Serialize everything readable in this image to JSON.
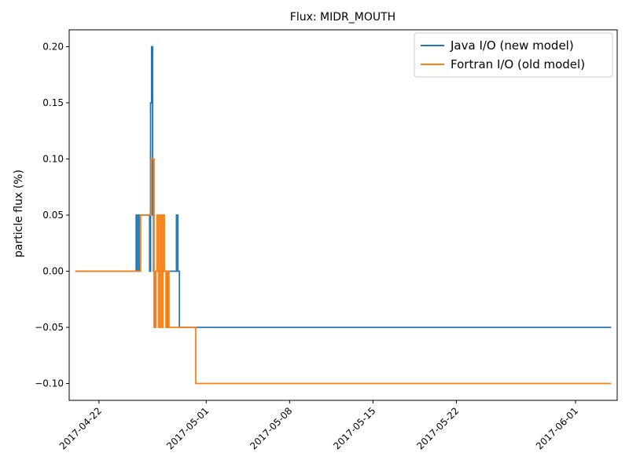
{
  "chart_data": {
    "type": "line",
    "title": "Flux: MIDR_MOUTH",
    "xlabel": "",
    "ylabel": "particle flux (%)",
    "x_ticks": [
      "2017-04-22",
      "2017-05-01",
      "2017-05-08",
      "2017-05-15",
      "2017-05-22",
      "2017-06-01"
    ],
    "y_ticks": [
      "0.20",
      "0.15",
      "0.10",
      "0.05",
      "0.00",
      "−0.05",
      "−0.10"
    ],
    "y_tick_values": [
      0.2,
      0.15,
      0.1,
      0.05,
      0.0,
      -0.05,
      -0.1
    ],
    "ylim": [
      -0.115,
      0.215
    ],
    "xlim": [
      "2017-04-19T12:00",
      "2017-06-04T12:00"
    ],
    "grid": false,
    "legend_position": "top-right",
    "series": [
      {
        "name": "Java I/O (new model)",
        "color": "#1f77b4",
        "step": "post",
        "x": [
          "2017-04-20T00:00",
          "2017-04-25T03:00",
          "2017-04-25T06:00",
          "2017-04-25T09:00",
          "2017-04-26T06:00",
          "2017-04-26T08:00",
          "2017-04-26T10:00",
          "2017-04-26T12:00",
          "2017-04-26T14:00",
          "2017-04-26T16:00",
          "2017-04-26T18:00",
          "2017-04-26T20:00",
          "2017-04-27T16:00",
          "2017-04-27T20:00",
          "2017-04-28T12:00",
          "2017-04-28T15:00",
          "2017-04-28T18:00",
          "2017-06-04T00:00"
        ],
        "y": [
          0.0,
          0.05,
          0.0,
          0.05,
          0.0,
          0.15,
          0.2,
          0.05,
          0.0,
          -0.05,
          0.0,
          0.0,
          -0.05,
          0.0,
          0.05,
          0.0,
          -0.05,
          -0.05
        ]
      },
      {
        "name": "Fortran I/O (old model)",
        "color": "#ff7f0e",
        "step": "post",
        "x": [
          "2017-04-20T00:00",
          "2017-04-25T12:00",
          "2017-04-26T00:00",
          "2017-04-26T09:00",
          "2017-04-26T15:00",
          "2017-04-26T18:00",
          "2017-04-26T21:00",
          "2017-04-27T00:00",
          "2017-04-27T03:00",
          "2017-04-27T06:00",
          "2017-04-27T09:00",
          "2017-04-27T12:00",
          "2017-04-27T15:00",
          "2017-04-27T18:00",
          "2017-04-27T21:00",
          "2017-04-28T00:00",
          "2017-04-28T03:00",
          "2017-04-30T03:00",
          "2017-06-04T00:00"
        ],
        "y": [
          0.0,
          0.05,
          0.05,
          0.1,
          -0.05,
          0.0,
          0.05,
          -0.05,
          0.05,
          -0.05,
          0.05,
          0.0,
          -0.05,
          0.0,
          -0.05,
          -0.05,
          -0.05,
          -0.1,
          -0.1
        ]
      }
    ]
  }
}
